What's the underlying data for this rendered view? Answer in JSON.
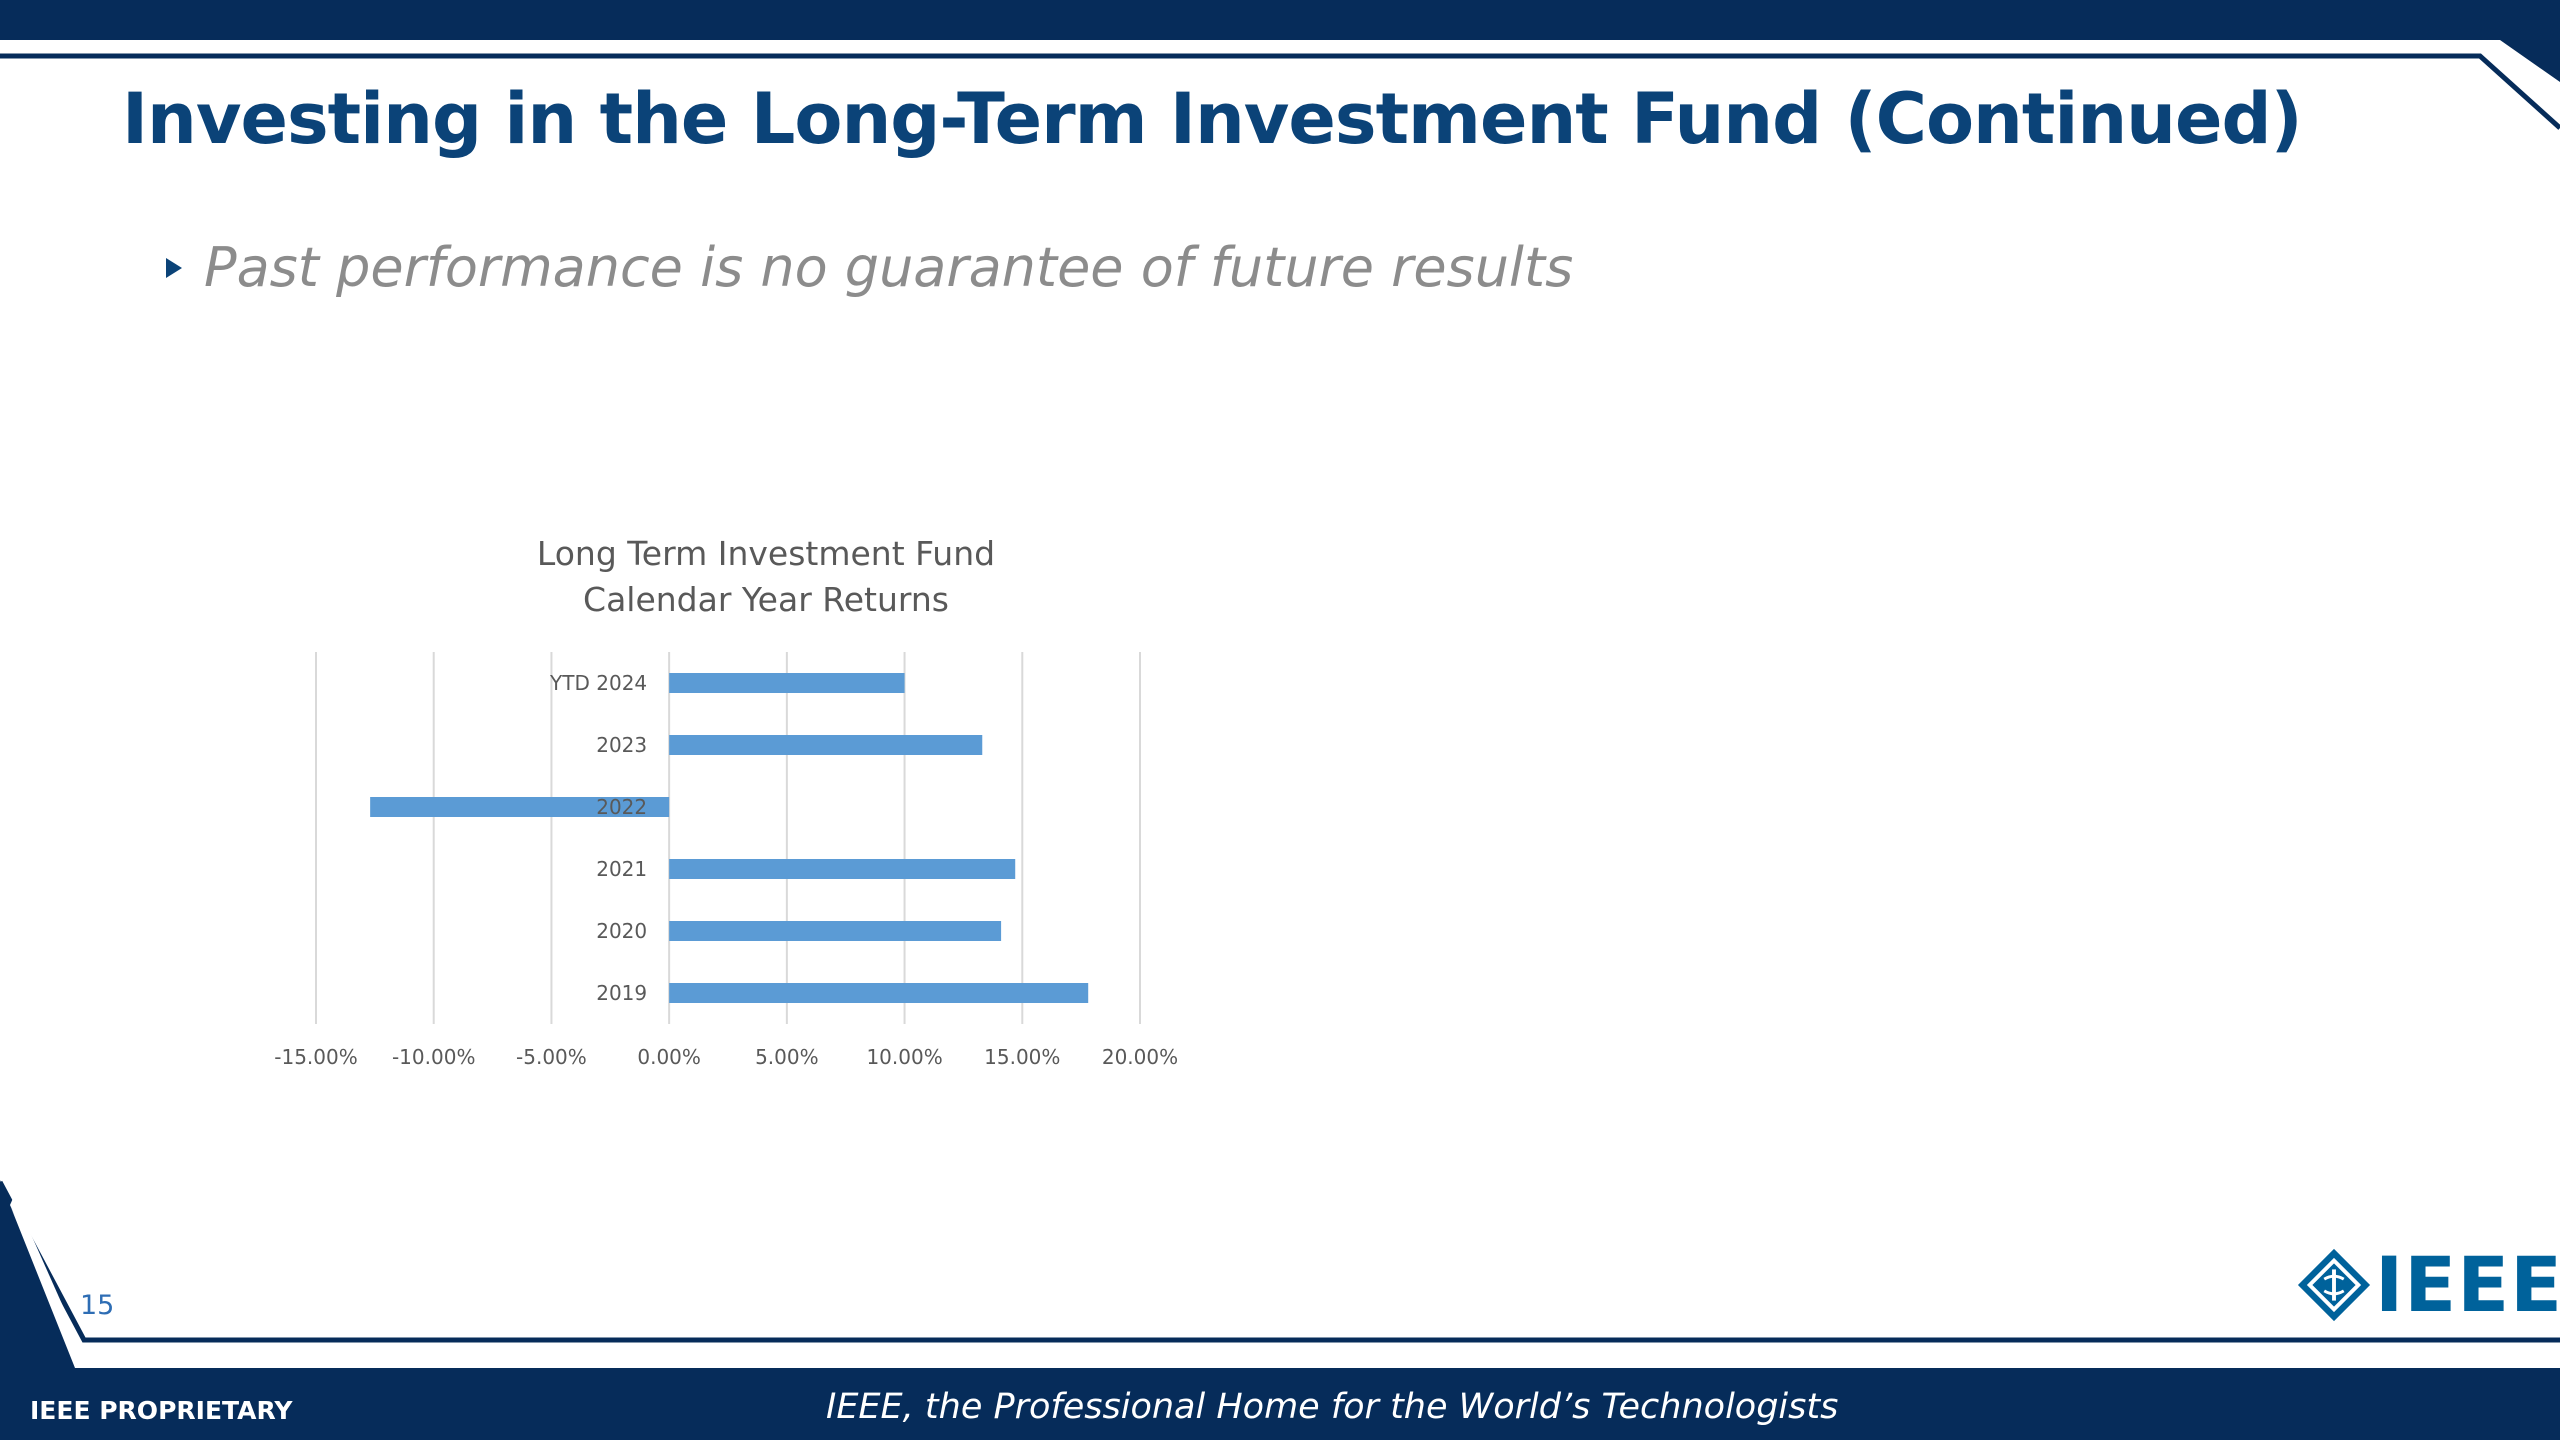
{
  "slide": {
    "title": "Investing in the Long-Term Investment Fund (Continued)",
    "bullet": "Past performance is no guarantee of future results",
    "page_number": "15",
    "footer_left": "IEEE PROPRIETARY",
    "footer_center": "IEEE, the Professional Home for the World’s Technologists",
    "logo_text": "IEEE"
  },
  "colors": {
    "navy": "#062c5a",
    "title_blue": "#0b4378",
    "bar_blue": "#5b9bd5",
    "logo_blue": "#00629b"
  },
  "icons": {
    "bullet": "triangle-bullet-icon",
    "logo": "ieee-diamond-logo-icon"
  },
  "chart_data": {
    "type": "bar",
    "orientation": "horizontal",
    "title_line1": "Long Term Investment Fund",
    "title_line2": "Calendar Year Returns",
    "categories": [
      "YTD 2024",
      "2023",
      "2022",
      "2021",
      "2020",
      "2019"
    ],
    "values": [
      0.1,
      0.133,
      -0.127,
      0.147,
      0.141,
      0.178
    ],
    "xlim": [
      -0.15,
      0.2
    ],
    "x_ticks": [
      -0.15,
      -0.1,
      -0.05,
      0,
      0.05,
      0.1,
      0.15,
      0.2
    ],
    "x_tick_labels": [
      "-15.00%",
      "-10.00%",
      "-5.00%",
      "0.00%",
      "5.00%",
      "10.00%",
      "15.00%",
      "20.00%"
    ],
    "gridlines": "vertical",
    "legend": "none"
  }
}
